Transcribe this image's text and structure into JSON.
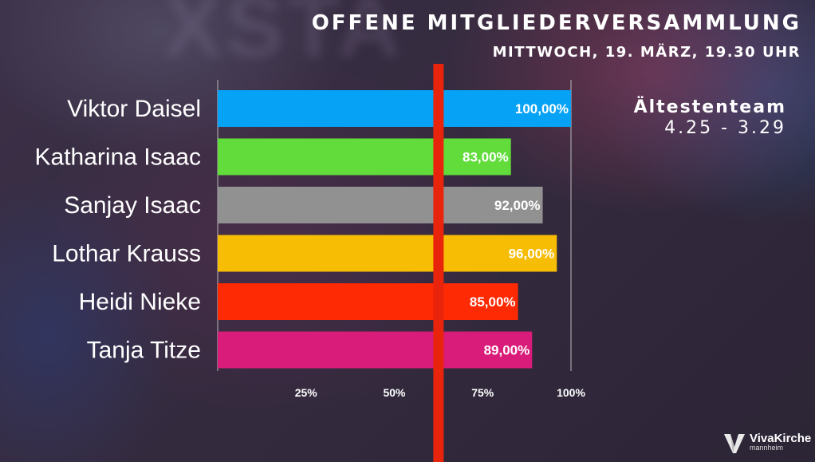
{
  "header": {
    "title": "OFFENE MITGLIEDERVERSAMMLUNG",
    "subtitle": "MITTWOCH, 19. MÄRZ, 19.30 UHR"
  },
  "team": {
    "title": "Ältestenteam",
    "range": "4.25 - 3.29"
  },
  "logo": {
    "name": "VivaKirche",
    "city": "mannheim"
  },
  "background_watermark": "XSTA",
  "colors": {
    "threshold_line": "#e8240c",
    "axis": "#bbbbbb",
    "gridline": "#bbbbbb"
  },
  "chart_data": {
    "type": "bar",
    "orientation": "horizontal",
    "categories": [
      "Viktor Daisel",
      "Katharina Isaac",
      "Sanjay Isaac",
      "Lothar Krauss",
      "Heidi Nieke",
      "Tanja Titze"
    ],
    "values": [
      100,
      83,
      92,
      96,
      85,
      89
    ],
    "value_labels": [
      "100,00%",
      "83,00%",
      "92,00%",
      "96,00%",
      "85,00%",
      "89,00%"
    ],
    "bar_colors": [
      "#06a2f5",
      "#61dc3b",
      "#919191",
      "#f7bc04",
      "#fd2a03",
      "#d91c79"
    ],
    "xlim": [
      0,
      100
    ],
    "x_ticks": [
      25,
      50,
      75,
      100
    ],
    "x_tick_labels": [
      "25%",
      "50%",
      "75%",
      "100%"
    ],
    "threshold": 62.5,
    "grid": "x-major-100",
    "legend": "none"
  }
}
